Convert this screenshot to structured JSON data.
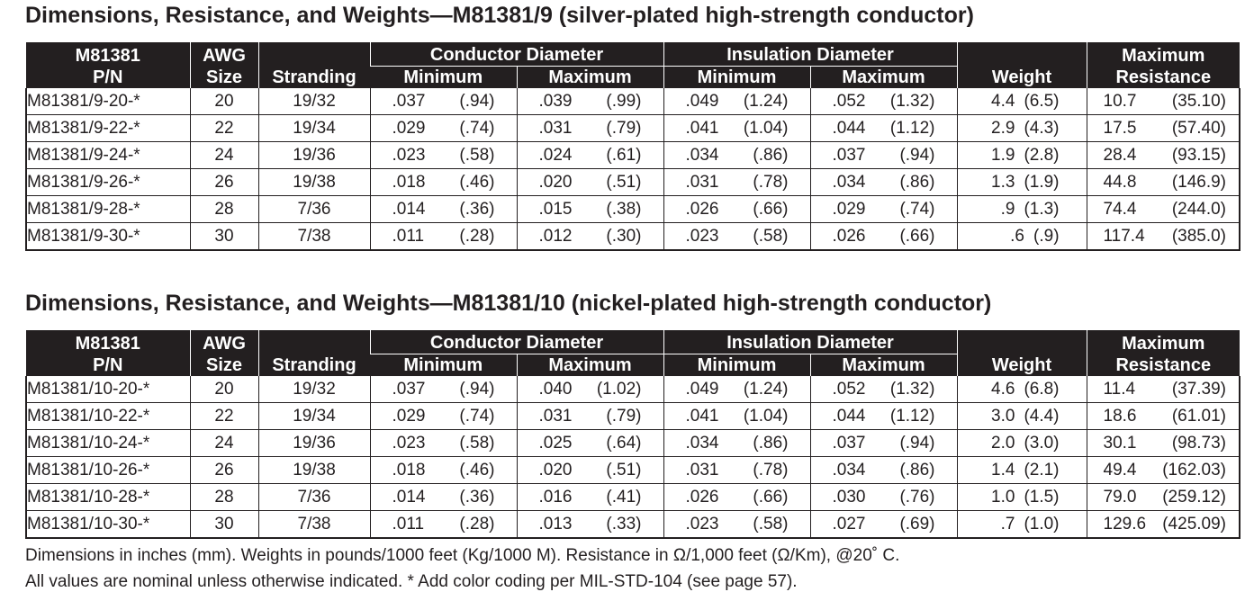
{
  "tables": [
    {
      "title": "Dimensions, Resistance, and Weights—M81381/9 (silver-plated high-strength conductor)",
      "headers": {
        "pn_line1": "M81381",
        "pn_line2": "P/N",
        "awg_line1": "AWG",
        "awg_line2": "Size",
        "stranding": "Stranding",
        "conductor_diameter": "Conductor Diameter",
        "insulation_diameter": "Insulation Diameter",
        "minimum": "Minimum",
        "maximum": "Maximum",
        "weight": "Weight",
        "max_res_line1": "Maximum",
        "max_res_line2": "Resistance"
      },
      "rows": [
        {
          "pn": "M81381/9-20-*",
          "awg": "20",
          "str": "19/32",
          "cmin": ".037",
          "cmin_mm": "(.94)",
          "cmax": ".039",
          "cmax_mm": "(.99)",
          "imin": ".049",
          "imin_mm": "(1.24)",
          "imax": ".052",
          "imax_mm": "(1.32)",
          "wt": "4.4",
          "wt_kg": "(6.5)",
          "res": "10.7",
          "res_km": "(35.10)"
        },
        {
          "pn": "M81381/9-22-*",
          "awg": "22",
          "str": "19/34",
          "cmin": ".029",
          "cmin_mm": "(.74)",
          "cmax": ".031",
          "cmax_mm": "(.79)",
          "imin": ".041",
          "imin_mm": "(1.04)",
          "imax": ".044",
          "imax_mm": "(1.12)",
          "wt": "2.9",
          "wt_kg": "(4.3)",
          "res": "17.5",
          "res_km": "(57.40)"
        },
        {
          "pn": "M81381/9-24-*",
          "awg": "24",
          "str": "19/36",
          "cmin": ".023",
          "cmin_mm": "(.58)",
          "cmax": ".024",
          "cmax_mm": "(.61)",
          "imin": ".034",
          "imin_mm": "(.86)",
          "imax": ".037",
          "imax_mm": "(.94)",
          "wt": "1.9",
          "wt_kg": "(2.8)",
          "res": "28.4",
          "res_km": "(93.15)"
        },
        {
          "pn": "M81381/9-26-*",
          "awg": "26",
          "str": "19/38",
          "cmin": ".018",
          "cmin_mm": "(.46)",
          "cmax": ".020",
          "cmax_mm": "(.51)",
          "imin": ".031",
          "imin_mm": "(.78)",
          "imax": ".034",
          "imax_mm": "(.86)",
          "wt": "1.3",
          "wt_kg": "(1.9)",
          "res": "44.8",
          "res_km": "(146.9)"
        },
        {
          "pn": "M81381/9-28-*",
          "awg": "28",
          "str": "7/36",
          "cmin": ".014",
          "cmin_mm": "(.36)",
          "cmax": ".015",
          "cmax_mm": "(.38)",
          "imin": ".026",
          "imin_mm": "(.66)",
          "imax": ".029",
          "imax_mm": "(.74)",
          "wt": ".9",
          "wt_kg": "(1.3)",
          "res": "74.4",
          "res_km": "(244.0)"
        },
        {
          "pn": "M81381/9-30-*",
          "awg": "30",
          "str": "7/38",
          "cmin": ".011",
          "cmin_mm": "(.28)",
          "cmax": ".012",
          "cmax_mm": "(.30)",
          "imin": ".023",
          "imin_mm": "(.58)",
          "imax": ".026",
          "imax_mm": "(.66)",
          "wt": ".6",
          "wt_kg": "(.9)",
          "res": "117.4",
          "res_km": "(385.0)"
        }
      ]
    },
    {
      "title": "Dimensions, Resistance, and Weights—M81381/10 (nickel-plated high-strength conductor)",
      "headers": {
        "pn_line1": "M81381",
        "pn_line2": "P/N",
        "awg_line1": "AWG",
        "awg_line2": "Size",
        "stranding": "Stranding",
        "conductor_diameter": "Conductor Diameter",
        "insulation_diameter": "Insulation Diameter",
        "minimum": "Minimum",
        "maximum": "Maximum",
        "weight": "Weight",
        "max_res_line1": "Maximum",
        "max_res_line2": "Resistance"
      },
      "rows": [
        {
          "pn": "M81381/10-20-*",
          "awg": "20",
          "str": "19/32",
          "cmin": ".037",
          "cmin_mm": "(.94)",
          "cmax": ".040",
          "cmax_mm": "(1.02)",
          "imin": ".049",
          "imin_mm": "(1.24)",
          "imax": ".052",
          "imax_mm": "(1.32)",
          "wt": "4.6",
          "wt_kg": "(6.8)",
          "res": "11.4",
          "res_km": "(37.39)"
        },
        {
          "pn": "M81381/10-22-*",
          "awg": "22",
          "str": "19/34",
          "cmin": ".029",
          "cmin_mm": "(.74)",
          "cmax": ".031",
          "cmax_mm": "(.79)",
          "imin": ".041",
          "imin_mm": "(1.04)",
          "imax": ".044",
          "imax_mm": "(1.12)",
          "wt": "3.0",
          "wt_kg": "(4.4)",
          "res": "18.6",
          "res_km": "(61.01)"
        },
        {
          "pn": "M81381/10-24-*",
          "awg": "24",
          "str": "19/36",
          "cmin": ".023",
          "cmin_mm": "(.58)",
          "cmax": ".025",
          "cmax_mm": "(.64)",
          "imin": ".034",
          "imin_mm": "(.86)",
          "imax": ".037",
          "imax_mm": "(.94)",
          "wt": "2.0",
          "wt_kg": "(3.0)",
          "res": "30.1",
          "res_km": "(98.73)"
        },
        {
          "pn": "M81381/10-26-*",
          "awg": "26",
          "str": "19/38",
          "cmin": ".018",
          "cmin_mm": "(.46)",
          "cmax": ".020",
          "cmax_mm": "(.51)",
          "imin": ".031",
          "imin_mm": "(.78)",
          "imax": ".034",
          "imax_mm": "(.86)",
          "wt": "1.4",
          "wt_kg": "(2.1)",
          "res": "49.4",
          "res_km": "(162.03)"
        },
        {
          "pn": "M81381/10-28-*",
          "awg": "28",
          "str": "7/36",
          "cmin": ".014",
          "cmin_mm": "(.36)",
          "cmax": ".016",
          "cmax_mm": "(.41)",
          "imin": ".026",
          "imin_mm": "(.66)",
          "imax": ".030",
          "imax_mm": "(.76)",
          "wt": "1.0",
          "wt_kg": "(1.5)",
          "res": "79.0",
          "res_km": "(259.12)"
        },
        {
          "pn": "M81381/10-30-*",
          "awg": "30",
          "str": "7/38",
          "cmin": ".011",
          "cmin_mm": "(.28)",
          "cmax": ".013",
          "cmax_mm": "(.33)",
          "imin": ".023",
          "imin_mm": "(.58)",
          "imax": ".027",
          "imax_mm": "(.69)",
          "wt": ".7",
          "wt_kg": "(1.0)",
          "res": "129.6",
          "res_km": "(425.09)"
        }
      ]
    }
  ],
  "notes": [
    "Dimensions in inches (mm). Weights in pounds/1000 feet (Kg/1000 M). Resistance in Ω/1,000 feet (Ω/Km), @20˚ C.",
    "All values are nominal unless otherwise indicated. * Add color coding per MIL-STD-104 (see page 57)."
  ],
  "colors": {
    "header_bg": "#231f20",
    "header_text": "#ffffff",
    "text": "#231f20",
    "background": "#ffffff"
  }
}
